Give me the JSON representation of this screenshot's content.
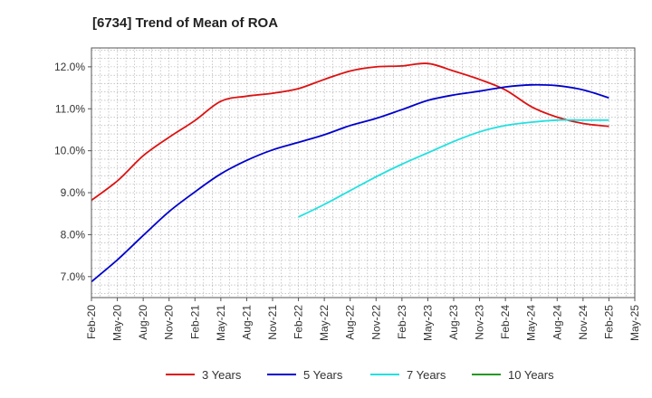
{
  "chart_data": {
    "type": "line",
    "title": "[6734]  Trend of Mean of ROA",
    "xlabel": "",
    "ylabel": "",
    "ylim": [
      6.5,
      12.45
    ],
    "y_ticks": [
      7.0,
      8.0,
      9.0,
      10.0,
      11.0,
      12.0
    ],
    "y_tick_labels": [
      "7.0%",
      "8.0%",
      "9.0%",
      "10.0%",
      "11.0%",
      "12.0%"
    ],
    "x_ticks": [
      "2020-02",
      "2020-05",
      "2020-08",
      "2020-11",
      "2021-02",
      "2021-05",
      "2021-08",
      "2021-11",
      "2022-02",
      "2022-05",
      "2022-08",
      "2022-11",
      "2023-02",
      "2023-05",
      "2023-08",
      "2023-11",
      "2024-02",
      "2024-05",
      "2024-08",
      "2024-11",
      "2025-02",
      "2025-05"
    ],
    "x_tick_labels": [
      "Feb-20",
      "May-20",
      "Aug-20",
      "Nov-20",
      "Feb-21",
      "May-21",
      "Aug-21",
      "Nov-21",
      "Feb-22",
      "May-22",
      "Aug-22",
      "Nov-22",
      "Feb-23",
      "May-23",
      "Aug-23",
      "Nov-23",
      "Feb-24",
      "May-24",
      "Aug-24",
      "Nov-24",
      "Feb-25",
      "May-25"
    ],
    "grid": true,
    "legend_position": "bottom",
    "series": [
      {
        "name": "3 Years",
        "color": "#dd1111",
        "points": [
          [
            "2020-02",
            8.82
          ],
          [
            "2020-05",
            9.28
          ],
          [
            "2020-08",
            9.88
          ],
          [
            "2020-11",
            10.32
          ],
          [
            "2021-02",
            10.72
          ],
          [
            "2021-05",
            11.18
          ],
          [
            "2021-08",
            11.3
          ],
          [
            "2021-11",
            11.37
          ],
          [
            "2022-02",
            11.48
          ],
          [
            "2022-05",
            11.7
          ],
          [
            "2022-08",
            11.9
          ],
          [
            "2022-11",
            12.0
          ],
          [
            "2023-02",
            12.02
          ],
          [
            "2023-05",
            12.08
          ],
          [
            "2023-08",
            11.9
          ],
          [
            "2023-11",
            11.7
          ],
          [
            "2024-02",
            11.45
          ],
          [
            "2024-05",
            11.05
          ],
          [
            "2024-08",
            10.8
          ],
          [
            "2024-11",
            10.65
          ],
          [
            "2025-02",
            10.58
          ]
        ]
      },
      {
        "name": "5 Years",
        "color": "#0000cc",
        "points": [
          [
            "2020-02",
            6.88
          ],
          [
            "2020-05",
            7.4
          ],
          [
            "2020-08",
            7.98
          ],
          [
            "2020-11",
            8.55
          ],
          [
            "2021-02",
            9.02
          ],
          [
            "2021-05",
            9.45
          ],
          [
            "2021-08",
            9.77
          ],
          [
            "2021-11",
            10.02
          ],
          [
            "2022-02",
            10.2
          ],
          [
            "2022-05",
            10.38
          ],
          [
            "2022-08",
            10.6
          ],
          [
            "2022-11",
            10.77
          ],
          [
            "2023-02",
            10.98
          ],
          [
            "2023-05",
            11.2
          ],
          [
            "2023-08",
            11.33
          ],
          [
            "2023-11",
            11.42
          ],
          [
            "2024-02",
            11.52
          ],
          [
            "2024-05",
            11.57
          ],
          [
            "2024-08",
            11.55
          ],
          [
            "2024-11",
            11.45
          ],
          [
            "2025-02",
            11.26
          ]
        ]
      },
      {
        "name": "7 Years",
        "color": "#22e0e0",
        "points": [
          [
            "2022-02",
            8.42
          ],
          [
            "2022-05",
            8.72
          ],
          [
            "2022-08",
            9.05
          ],
          [
            "2022-11",
            9.38
          ],
          [
            "2023-02",
            9.68
          ],
          [
            "2023-05",
            9.95
          ],
          [
            "2023-08",
            10.22
          ],
          [
            "2023-11",
            10.45
          ],
          [
            "2024-02",
            10.6
          ],
          [
            "2024-05",
            10.68
          ],
          [
            "2024-08",
            10.73
          ],
          [
            "2024-11",
            10.73
          ],
          [
            "2025-02",
            10.73
          ]
        ]
      },
      {
        "name": "10 Years",
        "color": "#229922",
        "points": []
      }
    ]
  }
}
